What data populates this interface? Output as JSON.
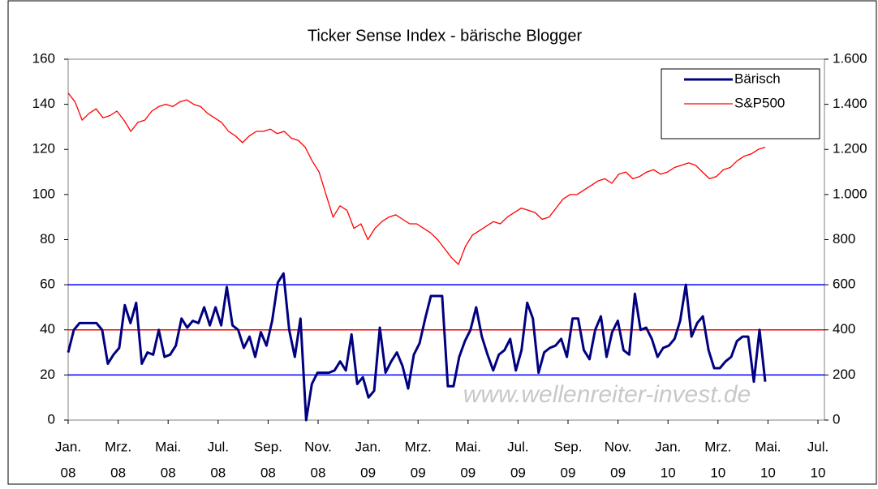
{
  "chart_data": {
    "type": "line",
    "title": "Ticker Sense Index - bärische Blogger",
    "x_labels": [
      {
        "month": "Jan.",
        "year": "08"
      },
      {
        "month": "Mrz.",
        "year": "08"
      },
      {
        "month": "Mai.",
        "year": "08"
      },
      {
        "month": "Jul.",
        "year": "08"
      },
      {
        "month": "Sep.",
        "year": "08"
      },
      {
        "month": "Nov.",
        "year": "08"
      },
      {
        "month": "Jan.",
        "year": "09"
      },
      {
        "month": "Mrz.",
        "year": "09"
      },
      {
        "month": "Mai.",
        "year": "09"
      },
      {
        "month": "Jul.",
        "year": "09"
      },
      {
        "month": "Sep.",
        "year": "09"
      },
      {
        "month": "Nov.",
        "year": "09"
      },
      {
        "month": "Jan.",
        "year": "10"
      },
      {
        "month": "Mrz.",
        "year": "10"
      },
      {
        "month": "Mai.",
        "year": "10"
      },
      {
        "month": "Jul.",
        "year": "10"
      }
    ],
    "ylim": [
      0,
      160
    ],
    "yticks": [
      0,
      20,
      40,
      60,
      80,
      100,
      120,
      140,
      160
    ],
    "y2lim": [
      0,
      1600
    ],
    "y2ticks": [
      0,
      200,
      400,
      600,
      800,
      {
        "value": 1000,
        "label": "1.000"
      },
      {
        "value": 1200,
        "label": "1.200"
      },
      {
        "value": 1400,
        "label": "1.400"
      },
      {
        "value": 1600,
        "label": "1.600"
      }
    ],
    "reference_lines": [
      {
        "value": 20,
        "color": "#0000ff"
      },
      {
        "value": 40,
        "color": "#ff0000"
      },
      {
        "value": 60,
        "color": "#0000ff"
      }
    ],
    "legend": "top-right",
    "watermark": "www.wellenreiter-invest.de",
    "series": [
      {
        "name": "Bärisch",
        "color": "#000080",
        "values": [
          30,
          40,
          43,
          43,
          43,
          43,
          40,
          25,
          29,
          32,
          51,
          43,
          52,
          25,
          30,
          29,
          40,
          28,
          29,
          33,
          45,
          41,
          44,
          43,
          50,
          42,
          50,
          42,
          59,
          42,
          40,
          32,
          37,
          28,
          39,
          33,
          44,
          61,
          65,
          40,
          28,
          45,
          0,
          16,
          21,
          21,
          21,
          22,
          26,
          22,
          38,
          16,
          19,
          10,
          13,
          41,
          21,
          26,
          30,
          24,
          14,
          29,
          34,
          45,
          55,
          55,
          55,
          15,
          15,
          28,
          35,
          40,
          50,
          37,
          29,
          22,
          29,
          31,
          36,
          22,
          31,
          52,
          45,
          21,
          30,
          32,
          33,
          36,
          28,
          45,
          45,
          31,
          27,
          40,
          46,
          28,
          39,
          44,
          31,
          29,
          56,
          40,
          41,
          36,
          28,
          32,
          33,
          36,
          44,
          60,
          37,
          43,
          46,
          31,
          23,
          23,
          26,
          28,
          35,
          37,
          37,
          17,
          40,
          17
        ]
      },
      {
        "name": "S&P500",
        "color": "#ff0000",
        "axis": "y2",
        "values": [
          1450,
          1410,
          1330,
          1360,
          1380,
          1340,
          1350,
          1370,
          1330,
          1280,
          1320,
          1330,
          1370,
          1390,
          1400,
          1390,
          1410,
          1420,
          1400,
          1390,
          1360,
          1340,
          1320,
          1280,
          1260,
          1230,
          1260,
          1280,
          1280,
          1290,
          1270,
          1280,
          1250,
          1240,
          1210,
          1150,
          1100,
          1000,
          900,
          950,
          930,
          850,
          870,
          800,
          850,
          880,
          900,
          910,
          890,
          870,
          870,
          850,
          830,
          800,
          760,
          720,
          690,
          770,
          820,
          840,
          860,
          880,
          870,
          900,
          920,
          940,
          930,
          920,
          890,
          900,
          940,
          980,
          1000,
          1000,
          1020,
          1040,
          1060,
          1070,
          1050,
          1090,
          1100,
          1070,
          1080,
          1100,
          1110,
          1090,
          1100,
          1120,
          1130,
          1140,
          1130,
          1100,
          1070,
          1080,
          1110,
          1120,
          1150,
          1170,
          1180,
          1200,
          1210
        ]
      }
    ]
  }
}
